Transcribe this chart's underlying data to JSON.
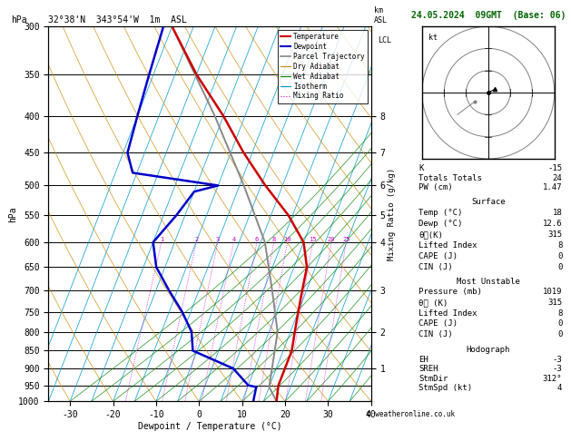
{
  "title_left": "32°38'N  343°54'W  1m  ASL",
  "title_right": "24.05.2024  09GMT  (Base: 06)",
  "xlabel": "Dewpoint / Temperature (°C)",
  "ylabel_left": "hPa",
  "x_min": -35,
  "x_max": 40,
  "pressure_levels": [
    300,
    350,
    400,
    450,
    500,
    550,
    600,
    650,
    700,
    750,
    800,
    850,
    900,
    950,
    1000
  ],
  "pressure_min": 300,
  "pressure_max": 1000,
  "temp_profile_p": [
    300,
    350,
    400,
    450,
    500,
    550,
    600,
    650,
    700,
    750,
    800,
    850,
    900,
    950,
    1000
  ],
  "temp_profile_t": [
    -40,
    -30,
    -20,
    -12,
    -4,
    4,
    10,
    13,
    14,
    15,
    16,
    17,
    17,
    17,
    18
  ],
  "dewp_profile_p": [
    300,
    350,
    400,
    450,
    480,
    500,
    510,
    550,
    600,
    650,
    700,
    750,
    800,
    850,
    900,
    950,
    955,
    1000
  ],
  "dewp_profile_t": [
    -42,
    -41,
    -40,
    -39,
    -36,
    -15,
    -20,
    -22,
    -25,
    -22,
    -17,
    -12,
    -8,
    -6,
    5,
    10,
    12,
    12.6
  ],
  "parcel_p": [
    300,
    400,
    500,
    600,
    700,
    800,
    900,
    955,
    1000
  ],
  "parcel_t": [
    -40,
    -22,
    -9,
    1,
    7,
    12,
    14,
    15,
    18
  ],
  "skew_factor": 28,
  "mixing_ratio_vals": [
    1,
    2,
    3,
    4,
    6,
    8,
    10,
    15,
    20,
    25
  ],
  "km_ticks": [
    1,
    2,
    3,
    4,
    5,
    6,
    7,
    8
  ],
  "km_pressures": [
    900,
    800,
    700,
    600,
    550,
    500,
    450,
    400
  ],
  "lcl_pressure": 955,
  "color_temp": "#cc0000",
  "color_dewp": "#0000cc",
  "color_parcel": "#888888",
  "color_dry_adiabat": "#cc8800",
  "color_wet_adiabat": "#008800",
  "color_isotherm": "#0099cc",
  "color_mixing": "#cc00cc",
  "stats": {
    "K": -15,
    "Totals_Totals": 24,
    "PW_cm": 1.47,
    "Surface_Temp": 18,
    "Surface_Dewp": 12.6,
    "Surface_theta_e": 315,
    "Surface_LI": 8,
    "Surface_CAPE": 0,
    "Surface_CIN": 0,
    "MU_Pressure": 1019,
    "MU_theta_e": 315,
    "MU_LI": 8,
    "MU_CAPE": 0,
    "MU_CIN": 0,
    "EH": -3,
    "SREH": -3,
    "StmDir": 312,
    "StmSpd": 4
  }
}
